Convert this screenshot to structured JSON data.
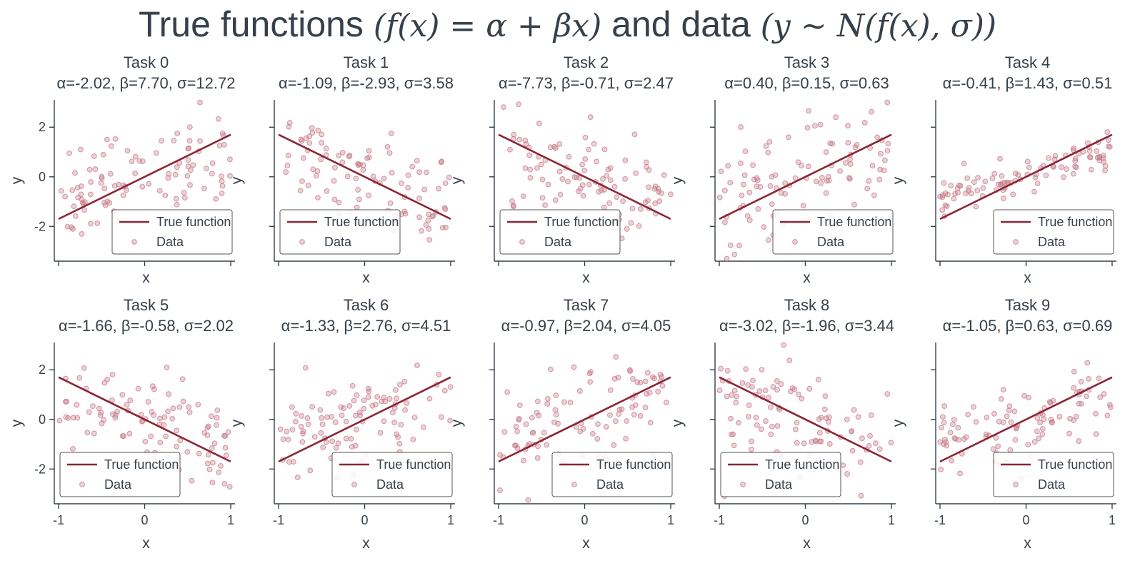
{
  "figure": {
    "title_text": "True functions",
    "title_math1": "(f(x) = α + βx)",
    "title_and": "and data",
    "title_math2": "(y ∼ N(f(x), σ))"
  },
  "colors": {
    "line": "#8b2535",
    "data": "#c77a87",
    "axis": "#36404a",
    "legend_border": "#555555"
  },
  "chart_data": [
    {
      "type": "scatter",
      "title": "Task 0",
      "subtitle": "α=-2.02, β=7.70, σ=12.72",
      "xlabel": "x",
      "ylabel": "y",
      "xlim": [
        -1.05,
        1.05
      ],
      "ylim": [
        -3.4,
        3.1
      ],
      "xticks": [
        -1,
        0,
        1
      ],
      "yticks": [
        -2,
        0,
        2
      ],
      "show_xtick_labels": false,
      "show_ytick_labels": true,
      "legend": {
        "position": "lower right",
        "entries": [
          "True function",
          "Data"
        ]
      },
      "series": [
        {
          "name": "True function",
          "type": "line",
          "x": [
            -1,
            1
          ],
          "y": [
            -1.7,
            1.7
          ]
        },
        {
          "name": "Data",
          "type": "scatter",
          "n_points": 100,
          "seed": 1,
          "slope": 1.7,
          "spread": 0.9
        }
      ]
    },
    {
      "type": "scatter",
      "title": "Task 1",
      "subtitle": "α=-1.09, β=-2.93, σ=3.58",
      "xlabel": "x",
      "ylabel": "y",
      "xlim": [
        -1.05,
        1.05
      ],
      "ylim": [
        -3.4,
        3.1
      ],
      "xticks": [
        -1,
        0,
        1
      ],
      "yticks": [
        -2,
        0,
        2
      ],
      "show_xtick_labels": false,
      "show_ytick_labels": false,
      "legend": {
        "position": "lower left",
        "entries": [
          "True function",
          "Data"
        ]
      },
      "series": [
        {
          "name": "True function",
          "type": "line",
          "x": [
            -1,
            1
          ],
          "y": [
            1.7,
            -1.7
          ]
        },
        {
          "name": "Data",
          "type": "scatter",
          "n_points": 100,
          "seed": 2,
          "slope": -1.7,
          "spread": 1.0
        }
      ]
    },
    {
      "type": "scatter",
      "title": "Task 2",
      "subtitle": "α=-7.73, β=-0.71, σ=2.47",
      "xlabel": "x",
      "ylabel": "y",
      "xlim": [
        -1.05,
        1.05
      ],
      "ylim": [
        -3.4,
        3.1
      ],
      "xticks": [
        -1,
        0,
        1
      ],
      "yticks": [
        -2,
        0,
        2
      ],
      "show_xtick_labels": false,
      "show_ytick_labels": false,
      "legend": {
        "position": "lower left",
        "entries": [
          "True function",
          "Data"
        ]
      },
      "series": [
        {
          "name": "True function",
          "type": "line",
          "x": [
            -1,
            1
          ],
          "y": [
            1.7,
            -1.7
          ]
        },
        {
          "name": "Data",
          "type": "scatter",
          "n_points": 100,
          "seed": 3,
          "slope": -1.7,
          "spread": 1.0
        }
      ]
    },
    {
      "type": "scatter",
      "title": "Task 3",
      "subtitle": "α=0.40, β=0.15, σ=0.63",
      "xlabel": "x",
      "ylabel": "y",
      "xlim": [
        -1.05,
        1.05
      ],
      "ylim": [
        -3.4,
        3.1
      ],
      "xticks": [
        -1,
        0,
        1
      ],
      "yticks": [
        -2,
        0,
        2
      ],
      "show_xtick_labels": false,
      "show_ytick_labels": false,
      "legend": {
        "position": "lower right",
        "entries": [
          "True function",
          "Data"
        ]
      },
      "series": [
        {
          "name": "True function",
          "type": "line",
          "x": [
            -1,
            1
          ],
          "y": [
            -1.7,
            1.7
          ]
        },
        {
          "name": "Data",
          "type": "scatter",
          "n_points": 100,
          "seed": 4,
          "slope": 1.7,
          "spread": 1.0
        }
      ]
    },
    {
      "type": "scatter",
      "title": "Task 4",
      "subtitle": "α=-0.41, β=1.43, σ=0.51",
      "xlabel": "x",
      "ylabel": "y",
      "xlim": [
        -1.05,
        1.05
      ],
      "ylim": [
        -3.4,
        3.1
      ],
      "xticks": [
        -1,
        0,
        1
      ],
      "yticks": [
        -2,
        0,
        2
      ],
      "show_xtick_labels": false,
      "show_ytick_labels": false,
      "legend": {
        "position": "lower right",
        "entries": [
          "True function",
          "Data"
        ]
      },
      "series": [
        {
          "name": "True function",
          "type": "line",
          "x": [
            -1,
            1
          ],
          "y": [
            -1.7,
            1.7
          ]
        },
        {
          "name": "Data",
          "type": "scatter",
          "n_points": 100,
          "seed": 5,
          "slope": 1.7,
          "spread": 0.35
        }
      ]
    },
    {
      "type": "scatter",
      "title": "Task 5",
      "subtitle": "α=-1.66, β=-0.58, σ=2.02",
      "xlabel": "x",
      "ylabel": "y",
      "xlim": [
        -1.05,
        1.05
      ],
      "ylim": [
        -3.4,
        3.1
      ],
      "xticks": [
        -1,
        0,
        1
      ],
      "yticks": [
        -2,
        0,
        2
      ],
      "show_xtick_labels": true,
      "show_ytick_labels": true,
      "legend": {
        "position": "lower left",
        "entries": [
          "True function",
          "Data"
        ]
      },
      "series": [
        {
          "name": "True function",
          "type": "line",
          "x": [
            -1,
            1
          ],
          "y": [
            1.7,
            -1.7
          ]
        },
        {
          "name": "Data",
          "type": "scatter",
          "n_points": 100,
          "seed": 6,
          "slope": -1.7,
          "spread": 1.0
        }
      ]
    },
    {
      "type": "scatter",
      "title": "Task 6",
      "subtitle": "α=-1.33, β=2.76, σ=4.51",
      "xlabel": "x",
      "ylabel": "y",
      "xlim": [
        -1.05,
        1.05
      ],
      "ylim": [
        -3.4,
        3.1
      ],
      "xticks": [
        -1,
        0,
        1
      ],
      "yticks": [
        -2,
        0,
        2
      ],
      "show_xtick_labels": true,
      "show_ytick_labels": false,
      "legend": {
        "position": "lower right",
        "entries": [
          "True function",
          "Data"
        ]
      },
      "series": [
        {
          "name": "True function",
          "type": "line",
          "x": [
            -1,
            1
          ],
          "y": [
            -1.7,
            1.7
          ]
        },
        {
          "name": "Data",
          "type": "scatter",
          "n_points": 100,
          "seed": 7,
          "slope": 1.7,
          "spread": 1.0
        }
      ]
    },
    {
      "type": "scatter",
      "title": "Task 7",
      "subtitle": "α=-0.97, β=2.04, σ=4.05",
      "xlabel": "x",
      "ylabel": "y",
      "xlim": [
        -1.05,
        1.05
      ],
      "ylim": [
        -3.4,
        3.1
      ],
      "xticks": [
        -1,
        0,
        1
      ],
      "yticks": [
        -2,
        0,
        2
      ],
      "show_xtick_labels": true,
      "show_ytick_labels": false,
      "legend": {
        "position": "lower right",
        "entries": [
          "True function",
          "Data"
        ]
      },
      "series": [
        {
          "name": "True function",
          "type": "line",
          "x": [
            -1,
            1
          ],
          "y": [
            -1.7,
            1.7
          ]
        },
        {
          "name": "Data",
          "type": "scatter",
          "n_points": 100,
          "seed": 8,
          "slope": 1.7,
          "spread": 1.0
        }
      ]
    },
    {
      "type": "scatter",
      "title": "Task 8",
      "subtitle": "α=-3.02, β=-1.96, σ=3.44",
      "xlabel": "x",
      "ylabel": "y",
      "xlim": [
        -1.05,
        1.05
      ],
      "ylim": [
        -3.4,
        3.1
      ],
      "xticks": [
        -1,
        0,
        1
      ],
      "yticks": [
        -2,
        0,
        2
      ],
      "show_xtick_labels": true,
      "show_ytick_labels": false,
      "legend": {
        "position": "lower left",
        "entries": [
          "True function",
          "Data"
        ]
      },
      "series": [
        {
          "name": "True function",
          "type": "line",
          "x": [
            -1,
            1
          ],
          "y": [
            1.7,
            -1.7
          ]
        },
        {
          "name": "Data",
          "type": "scatter",
          "n_points": 100,
          "seed": 9,
          "slope": -1.7,
          "spread": 1.0
        }
      ]
    },
    {
      "type": "scatter",
      "title": "Task 9",
      "subtitle": "α=-1.05, β=0.63, σ=0.69",
      "xlabel": "x",
      "ylabel": "y",
      "xlim": [
        -1.05,
        1.05
      ],
      "ylim": [
        -3.4,
        3.1
      ],
      "xticks": [
        -1,
        0,
        1
      ],
      "yticks": [
        -2,
        0,
        2
      ],
      "show_xtick_labels": true,
      "show_ytick_labels": false,
      "legend": {
        "position": "lower right",
        "entries": [
          "True function",
          "Data"
        ]
      },
      "series": [
        {
          "name": "True function",
          "type": "line",
          "x": [
            -1,
            1
          ],
          "y": [
            -1.7,
            1.7
          ]
        },
        {
          "name": "Data",
          "type": "scatter",
          "n_points": 100,
          "seed": 10,
          "slope": 1.7,
          "spread": 0.8
        }
      ]
    }
  ]
}
